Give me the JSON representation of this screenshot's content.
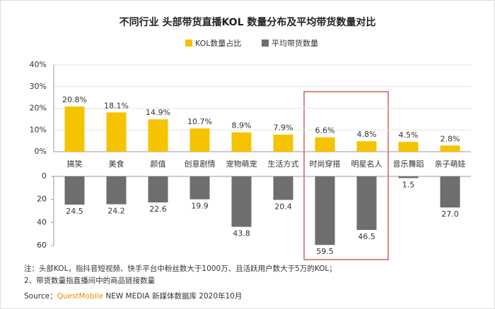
{
  "chart_data": [
    {
      "type": "bar",
      "title": "不同行业 头部带货直播KOL 数量分布及平均带货数量对比",
      "categories": [
        "搞笑",
        "美食",
        "颜值",
        "创意剧情",
        "宠物萌宠",
        "生活方式",
        "时尚穿搭",
        "明星名人",
        "音乐舞蹈",
        "亲子萌娃"
      ],
      "series": [
        {
          "name": "KOL数量占比",
          "color": "#f5c300",
          "values": [
            20.8,
            18.1,
            14.9,
            10.7,
            8.9,
            7.9,
            6.6,
            4.8,
            4.5,
            2.8
          ],
          "value_labels": [
            "20.8%",
            "18.1%",
            "14.9%",
            "10.7%",
            "8.9%",
            "7.9%",
            "6.6%",
            "4.8%",
            "4.5%",
            "2.8%"
          ]
        }
      ],
      "ylim": [
        0,
        40
      ],
      "yticks": [
        {
          "value": 0,
          "label": "0%"
        },
        {
          "value": 10,
          "label": "10%"
        },
        {
          "value": 20,
          "label": "20%"
        },
        {
          "value": 30,
          "label": "30%"
        },
        {
          "value": 40,
          "label": "40%"
        }
      ],
      "grid": true
    },
    {
      "type": "bar",
      "inverted": true,
      "series": [
        {
          "name": "平均带货数量",
          "color": "#6e6e6e",
          "values": [
            24.5,
            24.2,
            22.6,
            19.9,
            43.8,
            20.4,
            59.5,
            46.5,
            1.5,
            27.0
          ],
          "value_labels": [
            "24.5",
            "24.2",
            "22.6",
            "19.9",
            "43.8",
            "20.4",
            "59.5",
            "46.5",
            "1.5",
            "27.0"
          ]
        }
      ],
      "ylim": [
        0,
        60
      ],
      "yticks": [
        0,
        20,
        40,
        60
      ],
      "grid": false
    }
  ],
  "notes": [
    "注：头部KOL，指抖音短视频、快手平台中粉丝数大于1000万、且活跃用户数大于5万的KOL；",
    "2、带货数量指直播间中的商品链接数量"
  ],
  "source": {
    "prefix": "Source：",
    "brand": "QuestMobile",
    "rest": " NEW MEDIA 新媒体数据库 2020年10月"
  }
}
